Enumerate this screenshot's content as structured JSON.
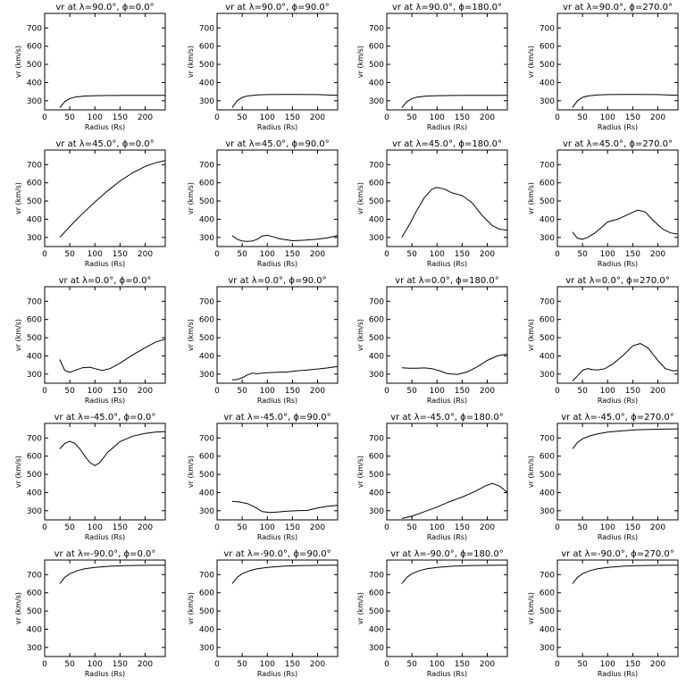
{
  "chart_data": [
    {
      "type": "line",
      "title": "vr at λ=90.0°, ϕ=0.0°",
      "xlabel": "Radius (Rs)",
      "ylabel": "vr (km/s)",
      "xlim": [
        0,
        240
      ],
      "ylim": [
        250,
        780
      ],
      "x": [
        30,
        40,
        50,
        60,
        80,
        100,
        130,
        160,
        200,
        240
      ],
      "y": [
        262,
        295,
        312,
        320,
        326,
        328,
        329,
        330,
        330,
        330
      ]
    },
    {
      "type": "line",
      "title": "vr at λ=90.0°, ϕ=90.0°",
      "xlabel": "Radius (Rs)",
      "ylabel": "vr (km/s)",
      "xlim": [
        0,
        240
      ],
      "ylim": [
        250,
        780
      ],
      "x": [
        30,
        40,
        50,
        60,
        80,
        100,
        130,
        160,
        200,
        240
      ],
      "y": [
        262,
        300,
        318,
        326,
        332,
        334,
        335,
        335,
        334,
        330
      ]
    },
    {
      "type": "line",
      "title": "vr at λ=90.0°, ϕ=180.0°",
      "xlabel": "Radius (Rs)",
      "ylabel": "vr (km/s)",
      "xlim": [
        0,
        240
      ],
      "ylim": [
        250,
        780
      ],
      "x": [
        30,
        40,
        50,
        60,
        80,
        100,
        130,
        160,
        200,
        240
      ],
      "y": [
        262,
        295,
        312,
        320,
        326,
        328,
        329,
        330,
        330,
        330
      ]
    },
    {
      "type": "line",
      "title": "vr at λ=90.0°, ϕ=270.0°",
      "xlabel": "Radius (Rs)",
      "ylabel": "vr (km/s)",
      "xlim": [
        0,
        240
      ],
      "ylim": [
        250,
        780
      ],
      "x": [
        30,
        40,
        50,
        60,
        80,
        100,
        130,
        160,
        200,
        240
      ],
      "y": [
        262,
        300,
        318,
        326,
        332,
        334,
        335,
        335,
        334,
        330
      ]
    },
    {
      "type": "line",
      "title": "vr at λ=45.0°, ϕ=0.0°",
      "xlabel": "Radius (Rs)",
      "ylabel": "vr (km/s)",
      "xlim": [
        0,
        240
      ],
      "ylim": [
        250,
        780
      ],
      "x": [
        30,
        50,
        75,
        100,
        125,
        150,
        175,
        200,
        220,
        240
      ],
      "y": [
        300,
        360,
        430,
        495,
        555,
        610,
        655,
        690,
        710,
        722
      ]
    },
    {
      "type": "line",
      "title": "vr at λ=45.0°, ϕ=90.0°",
      "xlabel": "Radius (Rs)",
      "ylabel": "vr (km/s)",
      "xlim": [
        0,
        240
      ],
      "ylim": [
        250,
        780
      ],
      "x": [
        30,
        40,
        50,
        60,
        70,
        80,
        90,
        100,
        110,
        125,
        150,
        175,
        200,
        220,
        240
      ],
      "y": [
        310,
        290,
        280,
        278,
        280,
        290,
        308,
        312,
        305,
        292,
        282,
        285,
        290,
        298,
        310
      ]
    },
    {
      "type": "line",
      "title": "vr at λ=45.0°, ϕ=180.0°",
      "xlabel": "Radius (Rs)",
      "ylabel": "vr (km/s)",
      "xlim": [
        0,
        240
      ],
      "ylim": [
        250,
        780
      ],
      "x": [
        30,
        45,
        60,
        75,
        90,
        100,
        115,
        130,
        150,
        170,
        190,
        210,
        225,
        240
      ],
      "y": [
        300,
        370,
        450,
        520,
        565,
        575,
        565,
        545,
        530,
        490,
        420,
        365,
        345,
        340
      ]
    },
    {
      "type": "line",
      "title": "vr at λ=45.0°, ϕ=270.0°",
      "xlabel": "Radius (Rs)",
      "ylabel": "vr (km/s)",
      "xlim": [
        0,
        240
      ],
      "ylim": [
        250,
        780
      ],
      "x": [
        30,
        40,
        50,
        60,
        75,
        90,
        100,
        120,
        140,
        160,
        175,
        190,
        210,
        225,
        240
      ],
      "y": [
        330,
        295,
        290,
        300,
        325,
        360,
        385,
        400,
        425,
        450,
        440,
        395,
        345,
        325,
        318
      ]
    },
    {
      "type": "line",
      "title": "vr at λ=0.0°, ϕ=0.0°",
      "xlabel": "Radius (Rs)",
      "ylabel": "vr (km/s)",
      "xlim": [
        0,
        240
      ],
      "ylim": [
        250,
        780
      ],
      "x": [
        30,
        40,
        50,
        60,
        75,
        90,
        100,
        115,
        130,
        150,
        175,
        200,
        220,
        240
      ],
      "y": [
        380,
        320,
        310,
        320,
        335,
        338,
        330,
        320,
        330,
        360,
        405,
        445,
        475,
        492
      ]
    },
    {
      "type": "line",
      "title": "vr at λ=0.0°, ϕ=90.0°",
      "xlabel": "Radius (Rs)",
      "ylabel": "vr (km/s)",
      "xlim": [
        0,
        240
      ],
      "ylim": [
        250,
        780
      ],
      "x": [
        30,
        40,
        50,
        60,
        70,
        80,
        90,
        100,
        120,
        140,
        160,
        180,
        200,
        220,
        240
      ],
      "y": [
        268,
        270,
        280,
        295,
        305,
        302,
        305,
        308,
        310,
        312,
        318,
        322,
        328,
        334,
        342
      ]
    },
    {
      "type": "line",
      "title": "vr at λ=0.0°, ϕ=180.0°",
      "xlabel": "Radius (Rs)",
      "ylabel": "vr (km/s)",
      "xlim": [
        0,
        240
      ],
      "ylim": [
        250,
        780
      ],
      "x": [
        30,
        45,
        60,
        75,
        90,
        105,
        120,
        140,
        160,
        180,
        200,
        220,
        240
      ],
      "y": [
        335,
        332,
        332,
        334,
        330,
        318,
        303,
        298,
        312,
        340,
        375,
        400,
        410
      ]
    },
    {
      "type": "line",
      "title": "vr at λ=0.0°, ϕ=270.0°",
      "xlabel": "Radius (Rs)",
      "ylabel": "vr (km/s)",
      "xlim": [
        0,
        240
      ],
      "ylim": [
        250,
        780
      ],
      "x": [
        30,
        40,
        50,
        60,
        70,
        80,
        95,
        110,
        130,
        150,
        165,
        180,
        200,
        215,
        230,
        240
      ],
      "y": [
        262,
        290,
        320,
        330,
        325,
        322,
        330,
        355,
        400,
        455,
        468,
        445,
        375,
        330,
        318,
        320
      ]
    },
    {
      "type": "line",
      "title": "vr at λ=-45.0°, ϕ=0.0°",
      "xlabel": "Radius (Rs)",
      "ylabel": "vr (km/s)",
      "xlim": [
        0,
        240
      ],
      "ylim": [
        250,
        780
      ],
      "x": [
        30,
        40,
        50,
        60,
        70,
        80,
        90,
        100,
        110,
        125,
        150,
        175,
        200,
        220,
        240
      ],
      "y": [
        640,
        670,
        682,
        670,
        640,
        600,
        565,
        548,
        565,
        620,
        680,
        710,
        725,
        732,
        735
      ]
    },
    {
      "type": "line",
      "title": "vr at λ=-45.0°, ϕ=90.0°",
      "xlabel": "Radius (Rs)",
      "ylabel": "vr (km/s)",
      "xlim": [
        0,
        240
      ],
      "ylim": [
        250,
        780
      ],
      "x": [
        30,
        45,
        60,
        75,
        90,
        105,
        120,
        140,
        160,
        180,
        200,
        220,
        240
      ],
      "y": [
        352,
        348,
        340,
        320,
        295,
        290,
        293,
        298,
        300,
        302,
        315,
        325,
        330
      ]
    },
    {
      "type": "line",
      "title": "vr at λ=-45.0°, ϕ=180.0°",
      "xlabel": "Radius (Rs)",
      "ylabel": "vr (km/s)",
      "xlim": [
        0,
        240
      ],
      "ylim": [
        250,
        780
      ],
      "x": [
        30,
        50,
        75,
        100,
        125,
        150,
        175,
        195,
        210,
        225,
        240
      ],
      "y": [
        258,
        270,
        295,
        320,
        350,
        375,
        405,
        435,
        450,
        435,
        400
      ]
    },
    {
      "type": "line",
      "title": "vr at λ=-45.0°, ϕ=270.0°",
      "xlabel": "Radius (Rs)",
      "ylabel": "vr (km/s)",
      "xlim": [
        0,
        240
      ],
      "ylim": [
        250,
        780
      ],
      "x": [
        30,
        40,
        50,
        65,
        80,
        100,
        130,
        160,
        200,
        240
      ],
      "y": [
        640,
        675,
        695,
        712,
        722,
        732,
        740,
        745,
        748,
        750
      ]
    },
    {
      "type": "line",
      "title": "vr at λ=-90.0°, ϕ=0.0°",
      "xlabel": "Radius (Rs)",
      "ylabel": "vr (km/s)",
      "xlim": [
        0,
        240
      ],
      "ylim": [
        250,
        780
      ],
      "x": [
        30,
        40,
        50,
        65,
        80,
        100,
        130,
        160,
        200,
        240
      ],
      "y": [
        650,
        685,
        705,
        722,
        732,
        740,
        746,
        749,
        751,
        752
      ]
    },
    {
      "type": "line",
      "title": "vr at λ=-90.0°, ϕ=90.0°",
      "xlabel": "Radius (Rs)",
      "ylabel": "vr (km/s)",
      "xlim": [
        0,
        240
      ],
      "ylim": [
        250,
        780
      ],
      "x": [
        30,
        40,
        50,
        65,
        80,
        100,
        130,
        160,
        200,
        240
      ],
      "y": [
        650,
        685,
        705,
        722,
        732,
        740,
        746,
        749,
        751,
        752
      ]
    },
    {
      "type": "line",
      "title": "vr at λ=-90.0°, ϕ=180.0°",
      "xlabel": "Radius (Rs)",
      "ylabel": "vr (km/s)",
      "xlim": [
        0,
        240
      ],
      "ylim": [
        250,
        780
      ],
      "x": [
        30,
        40,
        50,
        65,
        80,
        100,
        130,
        160,
        200,
        240
      ],
      "y": [
        650,
        685,
        705,
        722,
        732,
        740,
        746,
        749,
        751,
        752
      ]
    },
    {
      "type": "line",
      "title": "vr at λ=-90.0°, ϕ=270.0°",
      "xlabel": "Radius (Rs)",
      "ylabel": "vr (km/s)",
      "xlim": [
        0,
        240
      ],
      "ylim": [
        250,
        780
      ],
      "x": [
        30,
        40,
        50,
        65,
        80,
        100,
        130,
        160,
        200,
        240
      ],
      "y": [
        650,
        685,
        705,
        722,
        732,
        740,
        746,
        749,
        751,
        752
      ]
    }
  ],
  "axis": {
    "xticks": [
      0,
      50,
      100,
      150,
      200
    ],
    "yticks": [
      300,
      400,
      500,
      600,
      700
    ]
  }
}
